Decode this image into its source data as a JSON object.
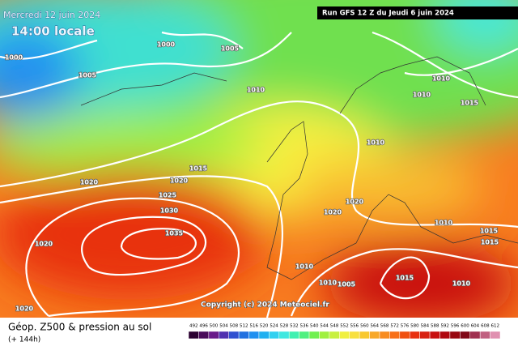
{
  "header": {
    "date": "Mercredi 12 juin 2024",
    "time": "14:00 locale",
    "run": "Run GFS 12 Z du Jeudi 6 juin 2024"
  },
  "isobar_labels": [
    "1000",
    "1005",
    "1000",
    "1005",
    "1010",
    "1010",
    "1010",
    "1015",
    "1010",
    "1015",
    "1020",
    "1020",
    "1025",
    "1030",
    "1035",
    "1020",
    "1020",
    "1020",
    "1010",
    "1015",
    "1015",
    "1010",
    "1010",
    "1005",
    "1015",
    "1010",
    "1020"
  ],
  "copyright": "Copyright (c) 2024 Meteociel.fr",
  "footer": {
    "title": "Géop. Z500 & pression au sol",
    "subtitle": "(+ 144h)"
  },
  "legend": {
    "labels": [
      492,
      496,
      500,
      504,
      508,
      512,
      516,
      520,
      524,
      528,
      532,
      536,
      540,
      544,
      548,
      552,
      556,
      560,
      564,
      568,
      572,
      576,
      580,
      584,
      588,
      592,
      596,
      600,
      604,
      608,
      612
    ],
    "colors": [
      "#2a0030",
      "#4a0a5a",
      "#6a1a8a",
      "#5030b0",
      "#3050d0",
      "#2070e0",
      "#2090f0",
      "#20b0f0",
      "#30d0f0",
      "#40e8e0",
      "#40f0b0",
      "#50f080",
      "#70f050",
      "#a0f040",
      "#c8f040",
      "#f0f040",
      "#f8e040",
      "#f8c830",
      "#f8a828",
      "#f88c20",
      "#f87018",
      "#f05010",
      "#e83010",
      "#d82010",
      "#c81010",
      "#b00810",
      "#980810",
      "#800818",
      "#a03050",
      "#c06080",
      "#e090b0"
    ]
  }
}
